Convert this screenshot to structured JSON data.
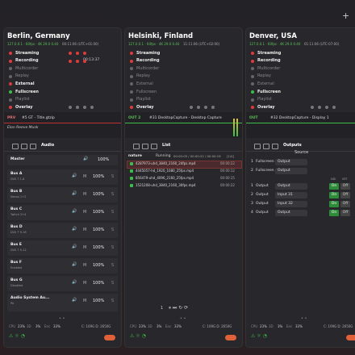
{
  "add_button": "+",
  "mute_label": "M",
  "solo_label": "S",
  "panels": [
    {
      "title": "Berlin, Germany",
      "info": "127.0.0.1 · 60fps · 4K 29.0 0.40",
      "time": "00:11:06 (UTC+01:00)",
      "status": [
        {
          "label": "Streaming",
          "color": "#e03b3b"
        },
        {
          "label": "Recording",
          "color": "#e03b3b",
          "time": "00:13:37"
        },
        {
          "label": "Multicorder",
          "color": "#666"
        },
        {
          "label": "Replay",
          "color": "#666"
        },
        {
          "label": "External",
          "color": "#e03b3b"
        },
        {
          "label": "Fullscreen",
          "color": "#3bbf4a"
        },
        {
          "label": "Playlist",
          "color": "#666"
        },
        {
          "label": "Overlay",
          "color": "#e03b3b"
        }
      ],
      "preview": {
        "tag": "PRV",
        "line": "#5 GT - Title.gtzip",
        "sub": "Elon Reeve Musk"
      },
      "tab": "Audio",
      "audio": {
        "master": {
          "name": "Master",
          "level": "100%"
        },
        "buses": [
          {
            "name": "Bus A",
            "sub": "DVS T 1-8",
            "level": "100%"
          },
          {
            "name": "Bus B",
            "sub": "Nexus 1+2",
            "level": "100%"
          },
          {
            "name": "Bus C",
            "sub": "Twitch 3+4",
            "level": "100%"
          },
          {
            "name": "Bus D",
            "sub": "DVS T 9-16",
            "level": "100%"
          },
          {
            "name": "Bus E",
            "sub": "DVS T 9-12",
            "level": "100%"
          },
          {
            "name": "Bus F",
            "sub": "Enabled",
            "level": "100%"
          },
          {
            "name": "Bus G",
            "sub": "Disabled",
            "level": "100%"
          },
          {
            "name": "Audio System Au...",
            "sub": "PA",
            "level": "100%"
          }
        ]
      },
      "footer": {
        "stats": [
          "CPU",
          "23%",
          "3D",
          "3%",
          "Enc",
          "33%"
        ],
        "disks": "C: 109G D: 2650G"
      }
    },
    {
      "title": "Helsinki, Finland",
      "info": "127.0.0.1 · 60fps · 4K 29.0 0.40",
      "time": "11:11:06 (UTC+02:00)",
      "status": [
        {
          "label": "Streaming",
          "color": "#e03b3b"
        },
        {
          "label": "Recording",
          "color": "#e03b3b"
        },
        {
          "label": "Multicorder",
          "color": "#666"
        },
        {
          "label": "Replay",
          "color": "#666"
        },
        {
          "label": "External",
          "color": "#666"
        },
        {
          "label": "Fullscreen",
          "color": "#666"
        },
        {
          "label": "Playlist",
          "color": "#666"
        },
        {
          "label": "Overlay",
          "color": "#e03b3b"
        }
      ],
      "preview": {
        "tag": "OUT 2",
        "line": "#31 DesktopCapture - Desktop Capture"
      },
      "tab": "List",
      "playlist": {
        "name": "nature",
        "state": "Running",
        "times": "00:00:05 / 00:00:22 / 00:00:19",
        "count": "[1/4]",
        "items": [
          {
            "file": "4287973-uhd_3840_2160_24fps.mp4",
            "dur": "00:00:22"
          },
          {
            "file": "4445057-hd_1920_1080_25fps.mp4",
            "dur": "00:00:12"
          },
          {
            "file": "856479-uhd_4096_2160_25fps.mp4",
            "dur": "00:00:15"
          },
          {
            "file": "1521208-uhd_3840_2160_30fps.mp4",
            "dur": "00:00:22"
          }
        ],
        "page": "1"
      },
      "footer": {
        "stats": [
          "CPU",
          "23%",
          "3D",
          "3%",
          "Enc",
          "33%"
        ],
        "disks": "C: 109G D: 2650G"
      }
    },
    {
      "title": "Denver, USA",
      "info": "127.0.0.1 · 60fps · 4K 29.0 0.40",
      "time": "01:11:06 (UTC-07:00)",
      "status": [
        {
          "label": "Streaming",
          "color": "#e03b3b"
        },
        {
          "label": "Recording",
          "color": "#e03b3b"
        },
        {
          "label": "Multicorder",
          "color": "#666"
        },
        {
          "label": "Replay",
          "color": "#666"
        },
        {
          "label": "External",
          "color": "#666"
        },
        {
          "label": "Fullscreen",
          "color": "#3bbf4a"
        },
        {
          "label": "Playlist",
          "color": "#666"
        },
        {
          "label": "Overlay",
          "color": "#e03b3b"
        }
      ],
      "preview": {
        "tag": "OUT",
        "line": "#32 DesktopCapture - Display 1"
      },
      "tab": "Outputs",
      "outputs": {
        "source_header": "Source",
        "columns": [
          "NDI",
          "SRT"
        ],
        "sources": [
          {
            "n": "1",
            "type": "Fullscreen",
            "src": "Output"
          },
          {
            "n": "2",
            "type": "Fullscreen",
            "src": "Output"
          }
        ],
        "rows": [
          {
            "n": "1",
            "type": "Output",
            "src": "Output",
            "a": "On",
            "b": "Off"
          },
          {
            "n": "2",
            "type": "Output",
            "src": "Input 31",
            "a": "On",
            "b": "Off"
          },
          {
            "n": "3",
            "type": "Output",
            "src": "Input 32",
            "a": "On",
            "b": "Off"
          },
          {
            "n": "4",
            "type": "Output",
            "src": "Output",
            "a": "On",
            "b": "Off"
          }
        ]
      },
      "footer": {
        "stats": [
          "CPU",
          "23%",
          "3D",
          "3%",
          "Enc",
          "33%"
        ],
        "disks": "C: 109G D: 2650G"
      }
    }
  ]
}
